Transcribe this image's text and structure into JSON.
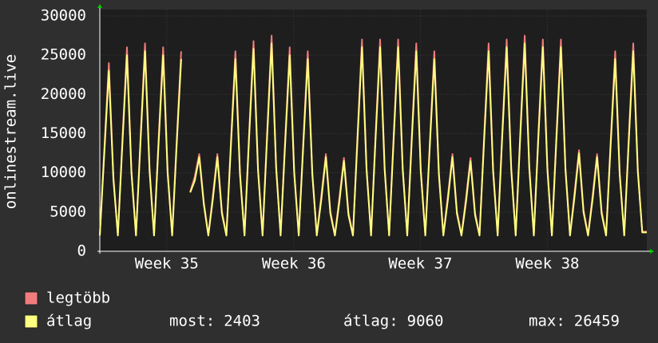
{
  "chart_data": {
    "type": "line",
    "ylabel": "onlinestream.live",
    "xlim": [
      0,
      121
    ],
    "xticks": [
      {
        "value": 14.8,
        "label": "Week 35"
      },
      {
        "value": 42.9,
        "label": "Week 36"
      },
      {
        "value": 70.9,
        "label": "Week 37"
      },
      {
        "value": 99,
        "label": "Week 38"
      }
    ],
    "ylim": [
      0,
      30000
    ],
    "yticks": [
      0,
      5000,
      10000,
      15000,
      20000,
      25000,
      30000
    ],
    "grid": true,
    "x": [
      0,
      1,
      2,
      3,
      4,
      5,
      6,
      7,
      8,
      9,
      10,
      11,
      12,
      13,
      14,
      15,
      16,
      17,
      18,
      19,
      20,
      21,
      22,
      23,
      24,
      25,
      26,
      27,
      28,
      29,
      30,
      31,
      32,
      33,
      34,
      35,
      36,
      37,
      38,
      39,
      40,
      41,
      42,
      43,
      44,
      45,
      46,
      47,
      48,
      49,
      50,
      51,
      52,
      53,
      54,
      55,
      56,
      57,
      58,
      59,
      60,
      61,
      62,
      63,
      64,
      65,
      66,
      67,
      68,
      69,
      70,
      71,
      72,
      73,
      74,
      75,
      76,
      77,
      78,
      79,
      80,
      81,
      82,
      83,
      84,
      85,
      86,
      87,
      88,
      89,
      90,
      91,
      92,
      93,
      94,
      95,
      96,
      97,
      98,
      99,
      100,
      101,
      102,
      103,
      104,
      105,
      106,
      107,
      108,
      109,
      110,
      111,
      112,
      113,
      114,
      115,
      116,
      117,
      118,
      119,
      120,
      121
    ],
    "series": [
      {
        "name": "legtöbb",
        "color": "#f27c7c",
        "values": [
          2100,
          13150,
          24000,
          9500,
          2100,
          14250,
          26000,
          10300,
          2100,
          14525,
          26500,
          10500,
          2100,
          14250,
          26000,
          10300,
          2100,
          13975,
          25500,
          null,
          7600,
          9500,
          12400,
          6300,
          2100,
          7100,
          12400,
          5100,
          2100,
          13975,
          25500,
          10100,
          2100,
          14690,
          26800,
          10620,
          2100,
          15075,
          27500,
          10900,
          2100,
          14250,
          26000,
          10300,
          2100,
          13975,
          25500,
          10100,
          2100,
          7100,
          12400,
          5100,
          2100,
          6825,
          11900,
          4900,
          2100,
          14800,
          27000,
          10700,
          2100,
          14800,
          27000,
          10700,
          2100,
          14800,
          27000,
          10700,
          2100,
          14525,
          26500,
          10500,
          2100,
          13975,
          25500,
          10100,
          2100,
          7100,
          12400,
          5100,
          2100,
          6825,
          11900,
          4900,
          2100,
          14525,
          26500,
          10500,
          2100,
          14800,
          27000,
          10700,
          2100,
          15075,
          27500,
          10900,
          2100,
          14800,
          27000,
          10700,
          2100,
          14800,
          27000,
          10700,
          2100,
          7375,
          12900,
          5300,
          2100,
          7100,
          12400,
          5100,
          2100,
          13975,
          25500,
          10100,
          2100,
          14525,
          26500,
          10500,
          2500,
          2500
        ]
      },
      {
        "name": "átlag",
        "color": "#ffff80",
        "values": [
          2000,
          12650,
          23000,
          9200,
          2000,
          13750,
          25000,
          10000,
          2000,
          14025,
          25500,
          10200,
          2000,
          13750,
          25000,
          10000,
          2000,
          13475,
          24500,
          null,
          7500,
          9000,
          12000,
          6000,
          2000,
          6600,
          12000,
          4800,
          2000,
          13475,
          24500,
          9800,
          2000,
          14190,
          25800,
          10320,
          2000,
          14575,
          26500,
          10600,
          2000,
          13750,
          25000,
          10000,
          2000,
          13475,
          24500,
          9800,
          2000,
          6600,
          12000,
          4800,
          2000,
          6325,
          11500,
          4600,
          2000,
          14300,
          26000,
          10400,
          2000,
          14300,
          26000,
          10400,
          2000,
          14300,
          26000,
          10400,
          2000,
          14025,
          25500,
          10200,
          2000,
          13475,
          24500,
          9800,
          2000,
          6600,
          12000,
          4800,
          2000,
          6325,
          11500,
          4600,
          2000,
          14025,
          25500,
          10200,
          2000,
          14300,
          26000,
          10400,
          2000,
          14575,
          26500,
          10600,
          2000,
          14300,
          26000,
          10400,
          2000,
          14300,
          26000,
          10400,
          2000,
          6875,
          12500,
          5000,
          2000,
          6600,
          12000,
          4800,
          2000,
          13475,
          24500,
          9800,
          2000,
          14025,
          25500,
          10200,
          2400,
          2403
        ]
      }
    ],
    "stats": [
      {
        "label": "most:",
        "value": 2403
      },
      {
        "label": "átlag:",
        "value": 9060
      },
      {
        "label": "max:",
        "value": 26459
      }
    ]
  }
}
